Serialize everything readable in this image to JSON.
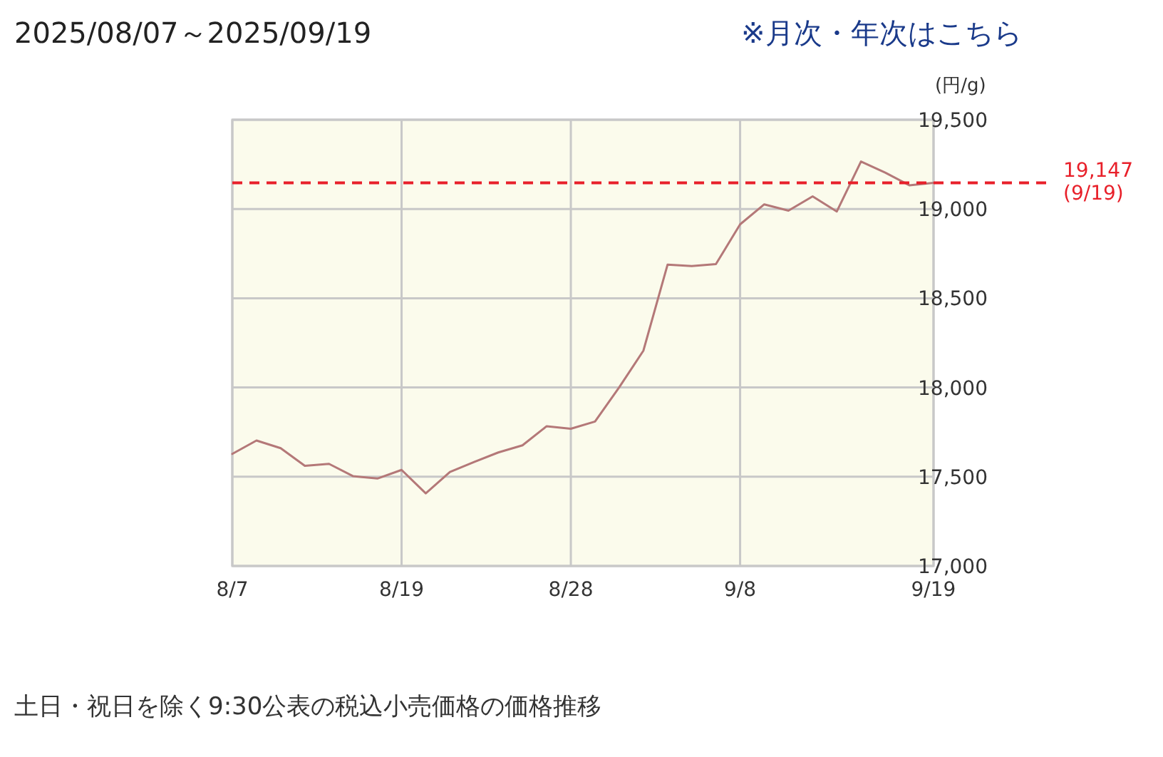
{
  "chart_data": {
    "type": "line",
    "title": "2025/08/07～2025/09/19",
    "annotations": [
      "※月次・年次はこちら",
      "土日・祝日を除く9:30公表の税込小売価格の価格推移"
    ],
    "ylabel": "(円/g)",
    "categories": [
      "8/7",
      null,
      null,
      null,
      null,
      null,
      null,
      "8/19",
      null,
      null,
      null,
      null,
      null,
      null,
      "8/28",
      null,
      null,
      null,
      null,
      null,
      null,
      "9/8",
      null,
      null,
      null,
      null,
      null,
      null,
      null,
      "9/19"
    ],
    "series": [
      {
        "color": "#b47878",
        "values": [
          17628,
          17703,
          17660,
          17561,
          17572,
          17503,
          17490,
          17538,
          17407,
          17527,
          17583,
          17636,
          17676,
          17783,
          17769,
          17809,
          18001,
          18206,
          18688,
          18680,
          18691,
          18914,
          19026,
          18991,
          19071,
          18986,
          19266,
          19204,
          19133,
          19147
        ]
      }
    ],
    "ylim": [
      17000,
      19500
    ],
    "yticks": [
      {
        "value": 17000,
        "label": "17,000"
      },
      {
        "value": 17500,
        "label": "17,500"
      },
      {
        "value": 18000,
        "label": "18,000"
      },
      {
        "value": 18500,
        "label": "18,500"
      },
      {
        "value": 19000,
        "label": "19,000"
      },
      {
        "value": 19500,
        "label": "19,500"
      }
    ],
    "grid": true,
    "ref_lines": [
      {
        "axis": "y",
        "value": 19147,
        "label": "19,147 (9/19)",
        "color": "#e8202a",
        "line_style": "dashed"
      }
    ]
  }
}
